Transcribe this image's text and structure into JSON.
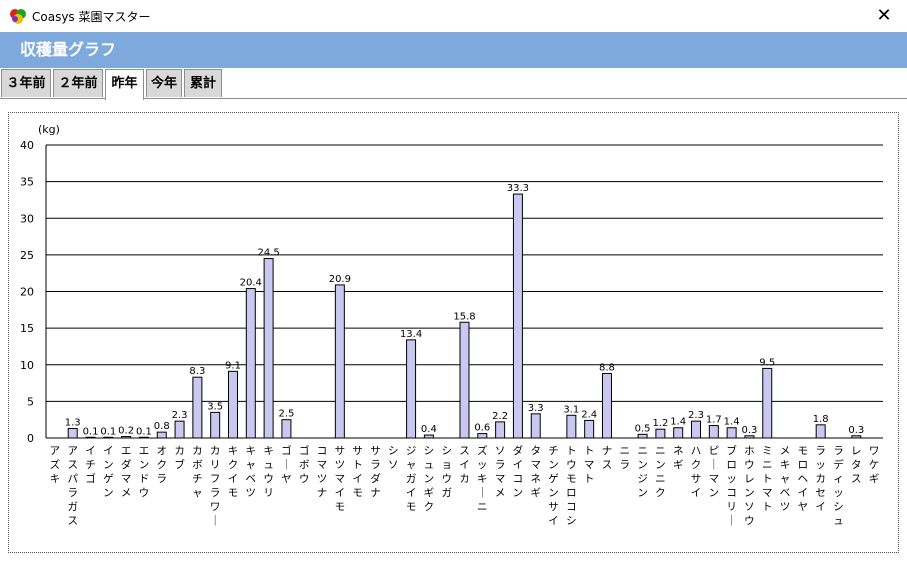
{
  "window": {
    "title": "Coasys 菜園マスター",
    "close_glyph": "✕"
  },
  "header": {
    "title": "収穫量グラフ"
  },
  "tabs": [
    {
      "label": "３年前",
      "active": false
    },
    {
      "label": "２年前",
      "active": false
    },
    {
      "label": "昨年",
      "active": true
    },
    {
      "label": "今年",
      "active": false
    },
    {
      "label": "累計",
      "active": false
    }
  ],
  "chart_data": {
    "type": "bar",
    "ylabel": "(kg)",
    "ylim": [
      0,
      40
    ],
    "yticks": [
      0,
      5,
      10,
      15,
      20,
      25,
      30,
      35,
      40
    ],
    "grid": true,
    "bar_color": "#c8c8f0",
    "categories": [
      "アズキ",
      "アスパラガス",
      "イチゴ",
      "インゲン",
      "エダマメ",
      "エンドウ",
      "オクラ",
      "カブ",
      "カボチャ",
      "カリフラワー",
      "キクイモ",
      "キャベツ",
      "キュウリ",
      "ゴーヤ",
      "ゴボウ",
      "コマツナ",
      "サツマイモ",
      "サトイモ",
      "サラダナ",
      "シソ",
      "ジャガイモ",
      "シュンギク",
      "ショウガ",
      "スイカ",
      "ズッキーニ",
      "ソラマメ",
      "ダイコン",
      "タマネギ",
      "チンゲンサイ",
      "トウモロコシ",
      "トマト",
      "ナス",
      "ニラ",
      "ニンジン",
      "ニンニク",
      "ネギ",
      "ハクサイ",
      "ピーマン",
      "ブロッコリー",
      "ホウレンソウ",
      "ミニトマト",
      "メキャベツ",
      "モロヘイヤ",
      "ラッカセイ",
      "ラディッシュ",
      "レタス",
      "ワケギ"
    ],
    "values": [
      null,
      1.3,
      0.1,
      0.1,
      0.2,
      0.1,
      0.8,
      2.3,
      8.3,
      3.5,
      9.1,
      20.4,
      24.5,
      2.5,
      null,
      null,
      20.9,
      null,
      null,
      null,
      13.4,
      0.4,
      null,
      15.8,
      0.6,
      2.2,
      33.3,
      3.3,
      null,
      3.1,
      2.4,
      8.8,
      null,
      0.5,
      1.2,
      1.4,
      2.3,
      1.7,
      1.4,
      0.3,
      9.5,
      null,
      null,
      1.8,
      null,
      0.3,
      null
    ],
    "data_labels": [
      "",
      "1.3",
      "0.1",
      "0.1",
      "0.2",
      "0.1",
      "0.8",
      "2.3",
      "8.3",
      "3.5",
      "9.1",
      "20.4",
      "24.5",
      "2.5",
      "",
      "",
      "20.9",
      "",
      "",
      "",
      "13.4",
      "0.4",
      "",
      "15.8",
      "0.6",
      "2.2",
      "33.3",
      "3.3",
      "",
      "3.1",
      "2.4",
      "8.8",
      "",
      "0.5",
      "1.2",
      "1.4",
      "2.3",
      "1.7",
      "1.4",
      "0.3",
      "9.5",
      "",
      "",
      "1.8",
      "",
      "0.3",
      ""
    ]
  }
}
